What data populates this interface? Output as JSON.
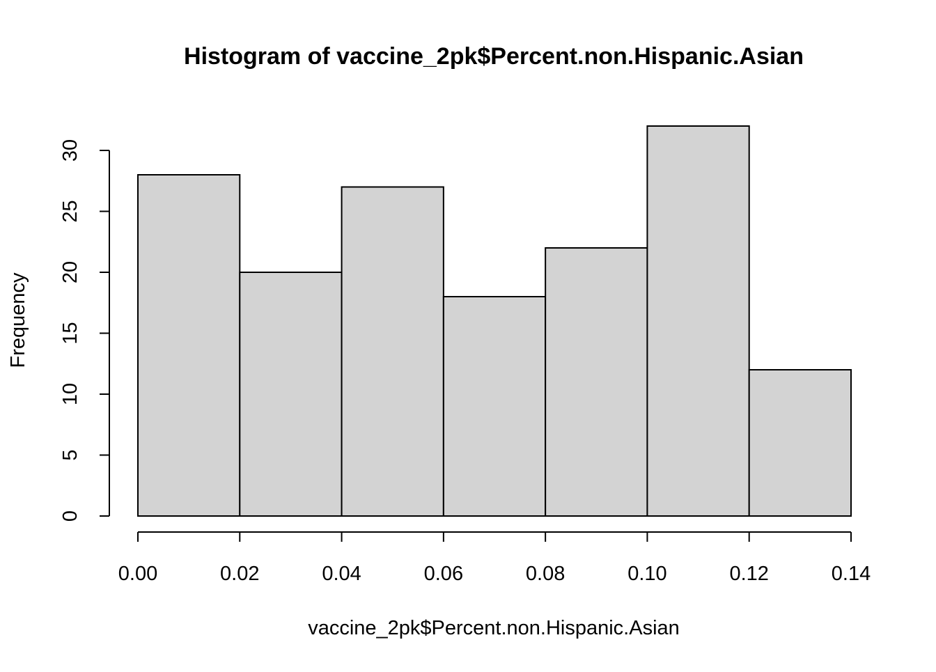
{
  "chart_data": {
    "type": "bar",
    "subtype": "histogram",
    "title": "Histogram of vaccine_2pk$Percent.non.Hispanic.Asian",
    "xlabel": "vaccine_2pk$Percent.non.Hispanic.Asian",
    "ylabel": "Frequency",
    "bins": [
      {
        "start": 0.0,
        "end": 0.02,
        "count": 28
      },
      {
        "start": 0.02,
        "end": 0.04,
        "count": 20
      },
      {
        "start": 0.04,
        "end": 0.06,
        "count": 27
      },
      {
        "start": 0.06,
        "end": 0.08,
        "count": 18
      },
      {
        "start": 0.08,
        "end": 0.1,
        "count": 22
      },
      {
        "start": 0.1,
        "end": 0.12,
        "count": 32
      },
      {
        "start": 0.12,
        "end": 0.14,
        "count": 12
      }
    ],
    "xlim": [
      0.0,
      0.14
    ],
    "ylim": [
      0,
      30
    ],
    "x_ticks": [
      "0.00",
      "0.02",
      "0.04",
      "0.06",
      "0.08",
      "0.10",
      "0.12",
      "0.14"
    ],
    "y_ticks": [
      "0",
      "5",
      "10",
      "15",
      "20",
      "25",
      "30"
    ],
    "bar_fill": "#d3d3d3",
    "bar_stroke": "#000000",
    "grid": false,
    "legend": "none"
  }
}
